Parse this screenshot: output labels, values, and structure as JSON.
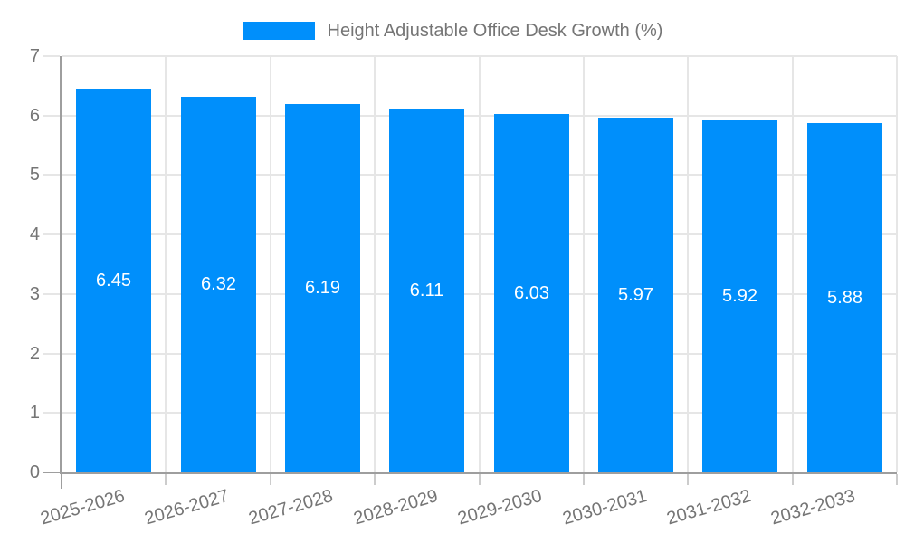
{
  "chart_data": {
    "type": "bar",
    "title": "Height Adjustable Office Desk Growth (%)",
    "categories": [
      "2025-2026",
      "2026-2027",
      "2027-2028",
      "2028-2029",
      "2029-2030",
      "2030-2031",
      "2031-2032",
      "2032-2033"
    ],
    "values": [
      6.45,
      6.32,
      6.19,
      6.11,
      6.03,
      5.97,
      5.92,
      5.88
    ],
    "bar_labels": [
      "6.45",
      "6.32",
      "6.19",
      "6.11",
      "6.03",
      "5.97",
      "5.92",
      "5.88"
    ],
    "xlabel": "",
    "ylabel": "",
    "ylim": [
      0,
      7
    ],
    "yticks": [
      0,
      1,
      2,
      3,
      4,
      5,
      6,
      7
    ],
    "grid": true,
    "legend_position": "top",
    "colors": {
      "bar": "#008FFB",
      "grid": "#e6e6e6",
      "axis": "#9e9e9e",
      "tick": "#cccccc",
      "text": "#757575",
      "bar_label": "#ffffff"
    }
  }
}
